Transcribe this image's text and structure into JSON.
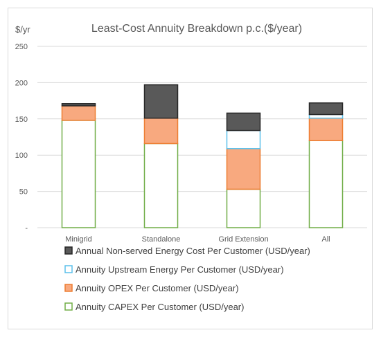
{
  "chart_data": {
    "type": "bar",
    "stacked": true,
    "title": "Least-Cost Annuity Breakdown p.c.($/year)",
    "ylabel": "$/yr",
    "xlabel": "",
    "ylim": [
      0,
      250
    ],
    "yticks": [
      0,
      50,
      100,
      150,
      200,
      250
    ],
    "ytick_labels": [
      "-",
      "50",
      "100",
      "150",
      "200",
      "250"
    ],
    "grid": true,
    "legend_position": "bottom",
    "categories": [
      "Minigrid",
      "Standalone",
      "Grid Extension",
      "All"
    ],
    "series": [
      {
        "name": "Annuity CAPEX Per Customer (USD/year)",
        "values": [
          148,
          116,
          53,
          120
        ],
        "fill": "#ffffff",
        "stroke": "#70ad47"
      },
      {
        "name": "Annuity OPEX Per Customer (USD/year)",
        "values": [
          20,
          35,
          56,
          31
        ],
        "fill": "#f8a97f",
        "stroke": "#ed7d31"
      },
      {
        "name": "Annuity Upstream Energy Per Customer (USD/year)",
        "values": [
          0,
          0,
          25,
          5
        ],
        "fill": "#ffffff",
        "stroke": "#5bc0eb"
      },
      {
        "name": "Annual Non-served Energy Cost Per Customer (USD/year)",
        "values": [
          3,
          46,
          24,
          16
        ],
        "fill": "#595959",
        "stroke": "#262626"
      }
    ]
  }
}
